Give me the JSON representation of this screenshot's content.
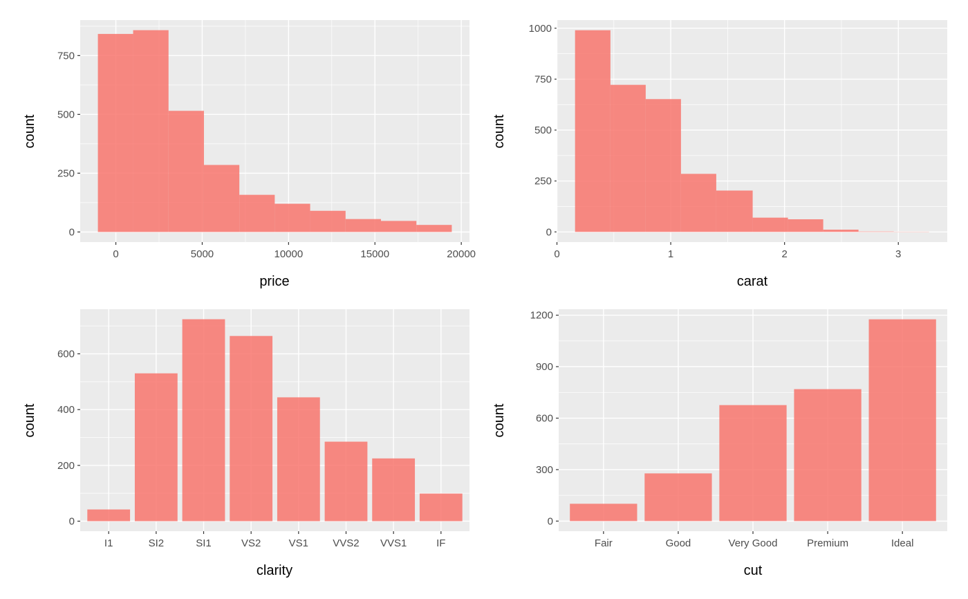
{
  "colors": {
    "bar_fill": "#F8766D",
    "panel_bg": "#EBEBEB",
    "grid": "#FFFFFF",
    "tick_text": "#4D4D4D"
  },
  "chart_data": [
    {
      "type": "bar",
      "subtype": "histogram",
      "xlabel": "price",
      "ylabel": "count",
      "bin_edges": [
        -1040,
        1000,
        3050,
        5100,
        7150,
        9200,
        11250,
        13300,
        15350,
        17400,
        19450
      ],
      "values": [
        842,
        858,
        515,
        285,
        158,
        120,
        90,
        55,
        47,
        30
      ],
      "xticks": [
        0,
        5000,
        10000,
        15000,
        20000
      ],
      "xtick_labels": [
        "0",
        "5000",
        "10000",
        "15000",
        "20000"
      ],
      "yticks": [
        0,
        250,
        500,
        750
      ],
      "yminor": [
        125,
        375,
        625,
        875
      ],
      "xminor": [
        2500,
        7500,
        12500,
        17500
      ],
      "xlim": [
        -2064,
        20474
      ],
      "ylim": [
        -43,
        901
      ],
      "grid": true
    },
    {
      "type": "bar",
      "subtype": "histogram",
      "xlabel": "carat",
      "ylabel": "count",
      "bin_edges": [
        0.159,
        0.47,
        0.78,
        1.09,
        1.4,
        1.72,
        2.03,
        2.34,
        2.65,
        2.96,
        3.27
      ],
      "values": [
        990,
        722,
        652,
        285,
        203,
        70,
        62,
        11,
        2,
        1
      ],
      "xticks": [
        0,
        1,
        2,
        3
      ],
      "xtick_labels": [
        "0",
        "1",
        "2",
        "3"
      ],
      "yticks": [
        0,
        250,
        500,
        750,
        1000
      ],
      "yminor": [
        125,
        375,
        625,
        875
      ],
      "xminor": [
        0.5,
        1.5,
        2.5
      ],
      "xlim": [
        0.003,
        3.43
      ],
      "ylim": [
        -50,
        1040
      ],
      "grid": true
    },
    {
      "type": "bar",
      "xlabel": "clarity",
      "ylabel": "count",
      "categories": [
        "I1",
        "SI2",
        "SI1",
        "VS2",
        "VS1",
        "VVS2",
        "VVS1",
        "IF"
      ],
      "values": [
        42,
        530,
        724,
        664,
        444,
        285,
        225,
        99
      ],
      "yticks": [
        0,
        200,
        400,
        600
      ],
      "yminor": [
        100,
        300,
        500,
        700
      ],
      "ylim": [
        -36,
        760
      ],
      "grid": true
    },
    {
      "type": "bar",
      "xlabel": "cut",
      "ylabel": "count",
      "categories": [
        "Fair",
        "Good",
        "Very Good",
        "Premium",
        "Ideal"
      ],
      "values": [
        101,
        278,
        676,
        769,
        1176
      ],
      "yticks": [
        0,
        300,
        600,
        900,
        1200
      ],
      "yminor": [
        150,
        450,
        750,
        1050
      ],
      "ylim": [
        -59,
        1235
      ],
      "grid": true
    }
  ]
}
